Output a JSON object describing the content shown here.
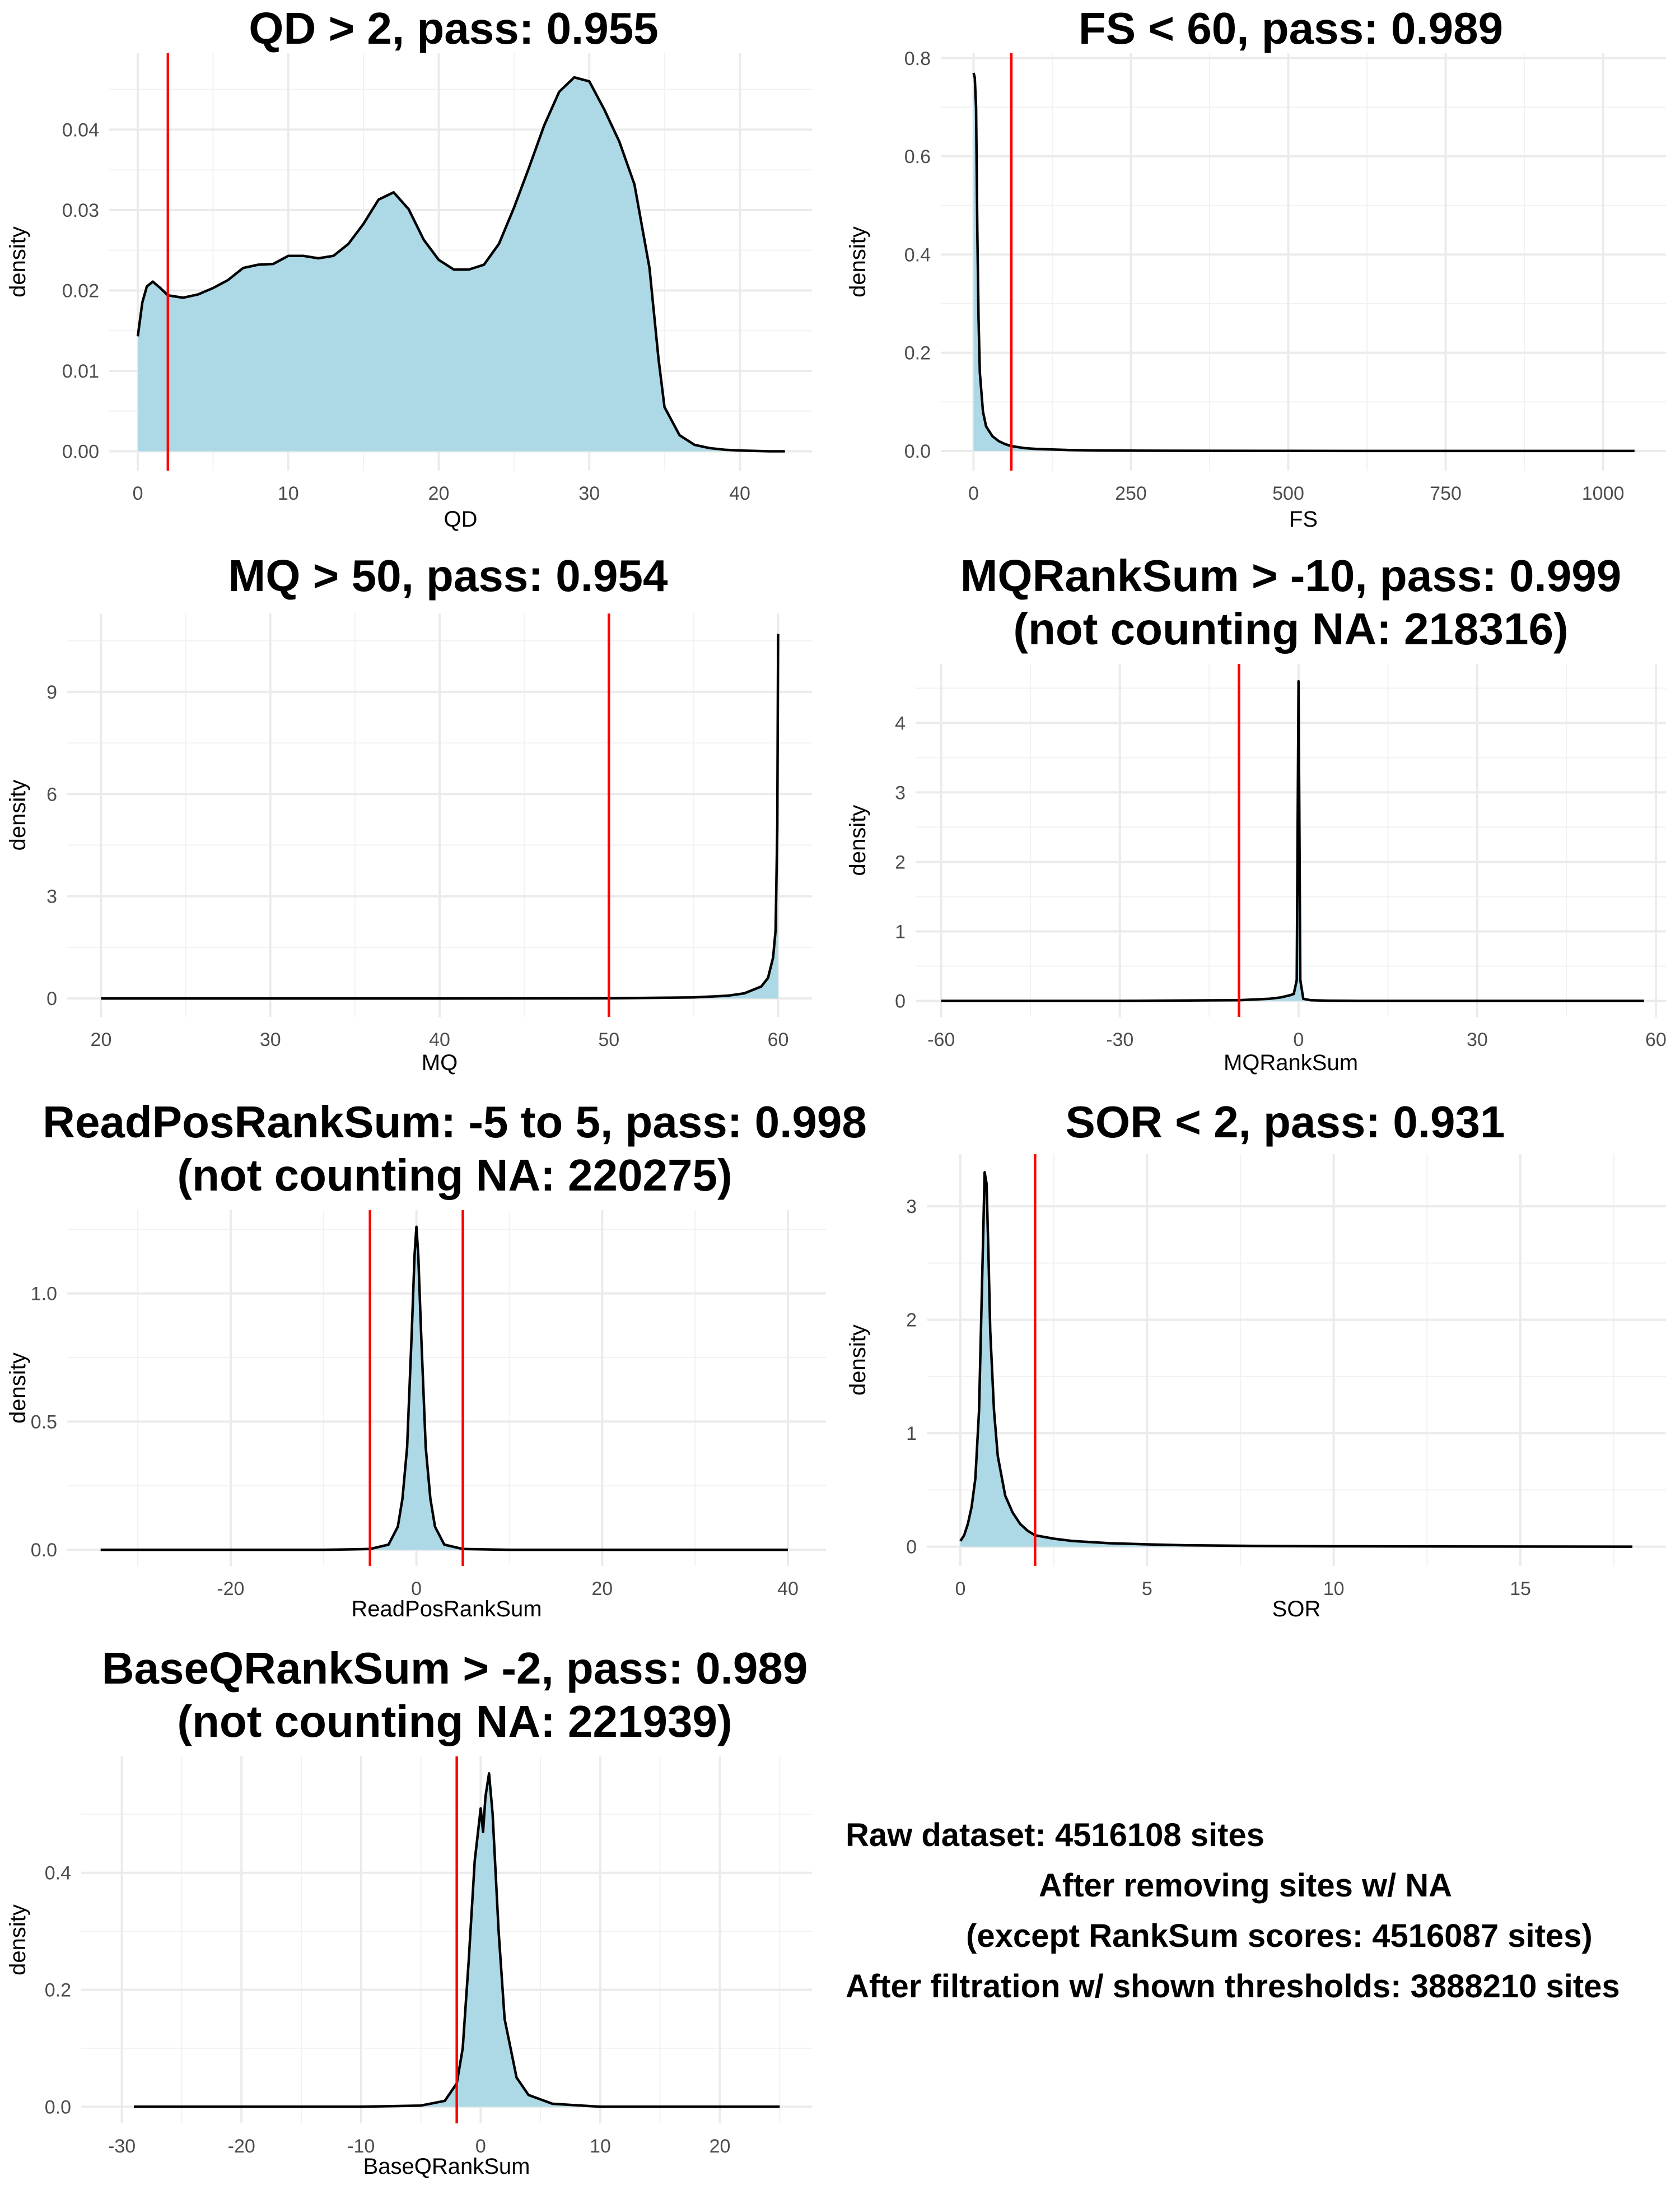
{
  "chart_data": [
    {
      "type": "area",
      "title": [
        "QD > 2, pass: 0.955"
      ],
      "xlabel": "QD",
      "ylabel": "density",
      "xlim": [
        -1.9,
        44.8
      ],
      "ylim": [
        -0.0024,
        0.0495
      ],
      "xticks": [
        0,
        10,
        20,
        30,
        40
      ],
      "yticks": [
        0,
        0.01,
        0.02,
        0.03,
        0.04
      ],
      "xtick_labels": [
        "0",
        "10",
        "20",
        "30",
        "40"
      ],
      "ytick_labels": [
        "0.00",
        "0.01",
        "0.02",
        "0.03",
        "0.04"
      ],
      "thresholds": [
        2
      ],
      "series": [
        {
          "x": [
            0,
            0.3,
            0.6,
            1,
            1.5,
            2,
            3,
            4,
            5,
            6,
            7,
            8,
            9,
            10,
            11,
            12,
            13,
            14,
            15,
            16,
            17,
            18,
            19,
            20,
            21,
            22,
            23,
            24,
            25,
            26,
            27,
            28,
            29,
            30,
            31,
            32,
            33,
            34,
            34.6,
            35,
            36,
            37,
            38,
            39,
            40,
            42,
            43
          ],
          "y": [
            0.0143,
            0.0185,
            0.0205,
            0.0211,
            0.0203,
            0.0194,
            0.0191,
            0.0195,
            0.0203,
            0.0213,
            0.0228,
            0.0232,
            0.0233,
            0.0243,
            0.0243,
            0.024,
            0.0243,
            0.0258,
            0.0283,
            0.0313,
            0.0322,
            0.0301,
            0.0263,
            0.0238,
            0.0226,
            0.0226,
            0.0232,
            0.0258,
            0.0303,
            0.0353,
            0.0405,
            0.0447,
            0.0465,
            0.046,
            0.0425,
            0.0385,
            0.0332,
            0.0228,
            0.0115,
            0.0055,
            0.002,
            0.0008,
            0.0004,
            0.0002,
            0.0001,
            0.0,
            0.0
          ]
        }
      ]
    },
    {
      "type": "area",
      "title": [
        "FS < 60, pass: 0.989"
      ],
      "xlabel": "FS",
      "ylabel": "density",
      "xlim": [
        -52,
        1100
      ],
      "ylim": [
        -0.04,
        0.81
      ],
      "xticks": [
        0,
        250,
        500,
        750,
        1000
      ],
      "yticks": [
        0,
        0.2,
        0.4,
        0.6,
        0.8
      ],
      "xtick_labels": [
        "0",
        "250",
        "500",
        "750",
        "1000"
      ],
      "ytick_labels": [
        "0.0",
        "0.2",
        "0.4",
        "0.6",
        "0.8"
      ],
      "thresholds": [
        60
      ],
      "series": [
        {
          "x": [
            0,
            2,
            4,
            6,
            8,
            10,
            15,
            20,
            30,
            40,
            50,
            60,
            80,
            100,
            150,
            200,
            300,
            500,
            700,
            900,
            1050
          ],
          "y": [
            0.77,
            0.76,
            0.7,
            0.45,
            0.27,
            0.16,
            0.08,
            0.05,
            0.03,
            0.02,
            0.014,
            0.01,
            0.006,
            0.004,
            0.002,
            0.001,
            0.0005,
            0.0002,
            0.0001,
            0.0,
            0.0
          ]
        }
      ]
    },
    {
      "type": "area",
      "title": [
        "MQ > 50, pass: 0.954"
      ],
      "xlabel": "MQ",
      "ylabel": "density",
      "xlim": [
        18.0,
        62.0
      ],
      "ylim": [
        -0.54,
        11.3
      ],
      "xticks": [
        20,
        30,
        40,
        50,
        60
      ],
      "yticks": [
        0,
        3,
        6,
        9
      ],
      "xtick_labels": [
        "20",
        "30",
        "40",
        "50",
        "60"
      ],
      "ytick_labels": [
        "0",
        "3",
        "6",
        "9"
      ],
      "thresholds": [
        50
      ],
      "series": [
        {
          "x": [
            20,
            30,
            40,
            50,
            55,
            57,
            58,
            59,
            59.4,
            59.7,
            59.85,
            59.95,
            60
          ],
          "y": [
            0.0,
            0.0,
            0.0,
            0.005,
            0.03,
            0.08,
            0.15,
            0.35,
            0.6,
            1.2,
            2.0,
            5.0,
            10.7
          ]
        }
      ]
    },
    {
      "type": "area",
      "title": [
        "MQRankSum > -10, pass: 0.999",
        "(not counting NA: 218316)"
      ],
      "xlabel": "MQRankSum",
      "ylabel": "density",
      "xlim": [
        -64.3,
        61.7
      ],
      "ylim": [
        -0.23,
        4.85
      ],
      "xticks": [
        -60,
        -30,
        0,
        30,
        60
      ],
      "yticks": [
        0,
        1,
        2,
        3,
        4
      ],
      "xtick_labels": [
        "-60",
        "-30",
        "0",
        "30",
        "60"
      ],
      "ytick_labels": [
        "0",
        "1",
        "2",
        "3",
        "4"
      ],
      "thresholds": [
        -10
      ],
      "series": [
        {
          "x": [
            -60,
            -30,
            -20,
            -10,
            -5,
            -3,
            -1.5,
            -0.8,
            -0.3,
            0,
            0.3,
            0.8,
            2,
            5,
            10,
            30,
            58
          ],
          "y": [
            0.0,
            0.0,
            0.005,
            0.01,
            0.03,
            0.05,
            0.08,
            0.1,
            0.3,
            4.6,
            0.3,
            0.03,
            0.01,
            0.003,
            0.0,
            0.0,
            0.0
          ]
        }
      ]
    },
    {
      "type": "area",
      "title": [
        "ReadPosRankSum: -5 to 5, pass: 0.998",
        "(not counting NA: 220275)"
      ],
      "xlabel": "ReadPosRankSum",
      "ylabel": "density",
      "xlim": [
        -37.6,
        44.1
      ],
      "ylim": [
        -0.063,
        1.325
      ],
      "xticks": [
        -20,
        0,
        20,
        40
      ],
      "yticks": [
        0,
        0.5,
        1.0
      ],
      "xtick_labels": [
        "-20",
        "0",
        "20",
        "40"
      ],
      "ytick_labels": [
        "0.0",
        "0.5",
        "1.0"
      ],
      "thresholds": [
        -5,
        5
      ],
      "series": [
        {
          "x": [
            -34,
            -10,
            -5,
            -3,
            -2,
            -1.5,
            -1,
            -0.5,
            -0.2,
            0,
            0.2,
            0.5,
            1,
            1.5,
            2,
            3,
            5,
            10,
            40
          ],
          "y": [
            0.0,
            0.0,
            0.003,
            0.02,
            0.09,
            0.2,
            0.4,
            0.85,
            1.15,
            1.26,
            1.15,
            0.85,
            0.4,
            0.2,
            0.09,
            0.02,
            0.003,
            0.0,
            0.0
          ]
        }
      ]
    },
    {
      "type": "area",
      "title": [
        "SOR < 2, pass: 0.931"
      ],
      "xlabel": "SOR",
      "ylabel": "density",
      "xlim": [
        -0.9,
        18.9
      ],
      "ylim": [
        -0.17,
        3.46
      ],
      "xticks": [
        0,
        5,
        10,
        15
      ],
      "yticks": [
        0,
        1,
        2,
        3
      ],
      "xtick_labels": [
        "0",
        "5",
        "10",
        "15"
      ],
      "ytick_labels": [
        "0",
        "1",
        "2",
        "3"
      ],
      "thresholds": [
        2
      ],
      "series": [
        {
          "x": [
            0,
            0.1,
            0.2,
            0.3,
            0.4,
            0.5,
            0.6,
            0.65,
            0.7,
            0.75,
            0.8,
            0.9,
            1.0,
            1.2,
            1.4,
            1.6,
            1.8,
            2.0,
            2.5,
            3.0,
            3.5,
            4.0,
            5.0,
            6.0,
            8.0,
            10.0,
            14.0,
            18.0
          ],
          "y": [
            0.05,
            0.1,
            0.2,
            0.35,
            0.6,
            1.2,
            2.6,
            3.3,
            3.2,
            2.6,
            1.9,
            1.2,
            0.8,
            0.45,
            0.3,
            0.2,
            0.14,
            0.1,
            0.07,
            0.05,
            0.04,
            0.03,
            0.02,
            0.012,
            0.006,
            0.003,
            0.001,
            0.0
          ]
        }
      ]
    },
    {
      "type": "area",
      "title": [
        "BaseQRankSum > -2, pass: 0.989",
        "(not counting NA: 221939)"
      ],
      "xlabel": "BaseQRankSum",
      "ylabel": "density",
      "xlim": [
        -33.4,
        27.7
      ],
      "ylim": [
        -0.0285,
        0.599
      ],
      "xticks": [
        -30,
        -20,
        -10,
        0,
        10,
        20
      ],
      "yticks": [
        0,
        0.2,
        0.4
      ],
      "xtick_labels": [
        "-30",
        "-20",
        "-10",
        "0",
        "10",
        "20"
      ],
      "ytick_labels": [
        "0.0",
        "0.2",
        "0.4"
      ],
      "thresholds": [
        -2
      ],
      "series": [
        {
          "x": [
            -29,
            -10,
            -5,
            -3,
            -2,
            -1.5,
            -1,
            -0.5,
            0,
            0.2,
            0.4,
            0.7,
            1.0,
            1.5,
            2,
            3,
            4,
            6,
            10,
            25
          ],
          "y": [
            0.0,
            0.0,
            0.002,
            0.01,
            0.04,
            0.1,
            0.25,
            0.42,
            0.51,
            0.47,
            0.53,
            0.57,
            0.5,
            0.3,
            0.15,
            0.05,
            0.02,
            0.005,
            0.0,
            0.0
          ]
        }
      ]
    }
  ],
  "summary": {
    "line1": "Raw dataset: 4516108 sites",
    "line2": "After removing sites w/ NA",
    "line3": "(except RankSum scores: 4516087 sites)",
    "line4": "After filtration w/ shown thresholds: 3888210 sites"
  },
  "colors": {
    "fill": "#ADD8E6",
    "curve": "#000000",
    "threshold": "#FF0000",
    "grid_major": "#EBEBEB",
    "grid_minor": "#F2F2F2"
  }
}
